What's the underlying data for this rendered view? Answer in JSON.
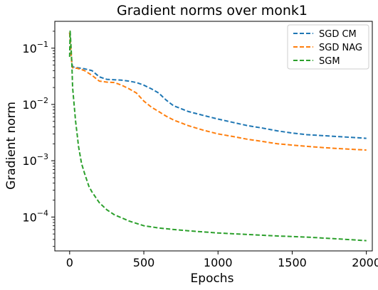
{
  "chart_data": {
    "type": "line",
    "title": "Gradient norms over monk1",
    "xlabel": "Epochs",
    "ylabel": "Gradient norm",
    "xlim": [
      -100,
      2040
    ],
    "ylim": [
      2.5e-05,
      0.3
    ],
    "yscale": "log",
    "grid": false,
    "legend_position": "top-right",
    "x_ticks": [
      0,
      500,
      1000,
      1500,
      2000
    ],
    "x_tick_labels": [
      "0",
      "500",
      "1000",
      "1500",
      "2000"
    ],
    "y_ticks": [
      0.1,
      0.01,
      0.001,
      0.0001
    ],
    "y_tick_labels": [
      {
        "base": "10",
        "exp": "−1"
      },
      {
        "base": "10",
        "exp": "−2"
      },
      {
        "base": "10",
        "exp": "−3"
      },
      {
        "base": "10",
        "exp": "−4"
      }
    ],
    "series": [
      {
        "name": "SGD CM",
        "color": "#1f77b4",
        "style": "dashed",
        "x": [
          0,
          5,
          10,
          15,
          20,
          30,
          50,
          100,
          150,
          200,
          250,
          300,
          350,
          400,
          450,
          500,
          550,
          600,
          650,
          700,
          800,
          900,
          1000,
          1100,
          1200,
          1300,
          1400,
          1500,
          1600,
          1700,
          1800,
          1900,
          2000
        ],
        "y": [
          0.19,
          0.12,
          0.08,
          0.055,
          0.047,
          0.046,
          0.045,
          0.043,
          0.04,
          0.031,
          0.028,
          0.0275,
          0.027,
          0.026,
          0.0245,
          0.022,
          0.019,
          0.016,
          0.012,
          0.0095,
          0.0075,
          0.0064,
          0.0055,
          0.0048,
          0.0042,
          0.0038,
          0.0034,
          0.0031,
          0.0029,
          0.0028,
          0.0027,
          0.0026,
          0.0025
        ]
      },
      {
        "name": "SGD NAG",
        "color": "#ff7f0e",
        "style": "dashed",
        "x": [
          0,
          5,
          10,
          15,
          20,
          30,
          50,
          100,
          150,
          200,
          250,
          300,
          350,
          400,
          450,
          500,
          550,
          600,
          650,
          700,
          800,
          900,
          1000,
          1100,
          1200,
          1300,
          1400,
          1500,
          1600,
          1700,
          1800,
          1900,
          2000
        ],
        "y": [
          0.19,
          0.12,
          0.08,
          0.05,
          0.045,
          0.044,
          0.044,
          0.04,
          0.033,
          0.026,
          0.025,
          0.0245,
          0.022,
          0.019,
          0.016,
          0.0115,
          0.009,
          0.0075,
          0.0062,
          0.0053,
          0.0042,
          0.0035,
          0.003,
          0.0027,
          0.0024,
          0.0022,
          0.002,
          0.0019,
          0.0018,
          0.00172,
          0.00165,
          0.0016,
          0.00155
        ]
      },
      {
        "name": "SGM",
        "color": "#2ca02c",
        "style": "dashed",
        "x": [
          0,
          3,
          6,
          10,
          15,
          20,
          30,
          40,
          50,
          60,
          80,
          100,
          130,
          150,
          200,
          250,
          300,
          400,
          500,
          600,
          700,
          800,
          1000,
          1200,
          1400,
          1600,
          1800,
          2000
        ],
        "y": [
          0.07,
          0.2,
          0.15,
          0.1,
          0.05,
          0.02,
          0.01,
          0.005,
          0.003,
          0.0018,
          0.0009,
          0.0006,
          0.00035,
          0.00028,
          0.00018,
          0.000135,
          0.00011,
          8.5e-05,
          7e-05,
          6.4e-05,
          6e-05,
          5.7e-05,
          5.2e-05,
          4.9e-05,
          4.6e-05,
          4.4e-05,
          4.1e-05,
          3.8e-05
        ]
      }
    ]
  }
}
